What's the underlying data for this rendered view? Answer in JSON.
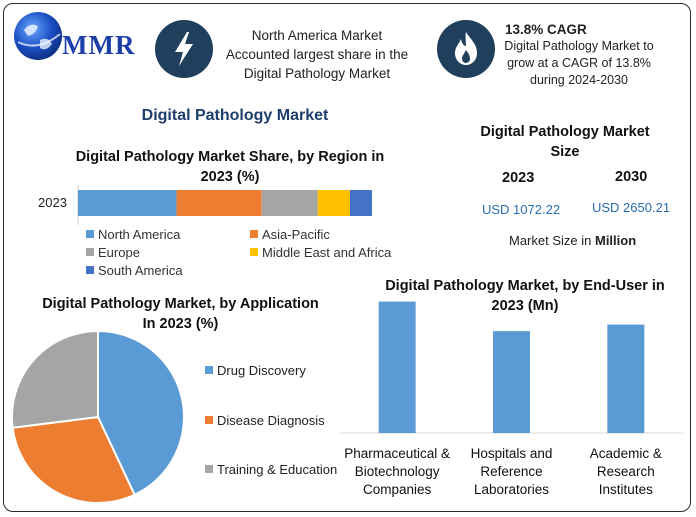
{
  "brand": {
    "logo_text": "MMR"
  },
  "header": {
    "item1": {
      "text_lines": [
        "North America Market",
        "Accounted largest share in the",
        "Digital Pathology Market"
      ],
      "icon": "lightning-icon"
    },
    "item2": {
      "title": "13.8% CAGR",
      "text_lines": [
        "Digital Pathology Market to",
        "grow at a CAGR of 13.8%",
        "during 2024-2030"
      ],
      "icon": "flame-icon"
    }
  },
  "main_title": "Digital Pathology Market",
  "market_size": {
    "title_lines": [
      "Digital Pathology Market",
      "Size"
    ],
    "year1": "2023",
    "year2": "2030",
    "value1": "USD 1072.22",
    "value2": "USD 2650.21",
    "note_prefix": "Market Size in ",
    "note_unit": "Million"
  },
  "colors": {
    "north_america": "#5b9bd5",
    "asia_pacific": "#ed7d31",
    "europe": "#a5a5a5",
    "mea": "#ffc000",
    "south_america": "#4472c4",
    "bar": "#5b9bd5"
  },
  "chart_data": [
    {
      "type": "bar",
      "orientation": "horizontal-stacked",
      "title": "Digital Pathology Market Share, by Region in 2023 (%)",
      "categories": [
        "2023"
      ],
      "series": [
        {
          "name": "North America",
          "values": [
            33.5
          ]
        },
        {
          "name": "Asia-Pacific",
          "values": [
            29
          ]
        },
        {
          "name": "Europe",
          "values": [
            19
          ]
        },
        {
          "name": "Middle East and Africa",
          "values": [
            11
          ]
        },
        {
          "name": "South America",
          "values": [
            7.5
          ]
        }
      ],
      "legend": "bottom"
    },
    {
      "type": "pie",
      "title": "Digital Pathology Market, by Application In 2023 (%)",
      "labels": [
        "Drug Discovery",
        "Disease Diagnosis",
        "Training & Education"
      ],
      "values": [
        43,
        30,
        27
      ],
      "legend": "right"
    },
    {
      "type": "bar",
      "title": "Digital Pathology Market, by End-User in 2023 (Mn)",
      "categories": [
        "Pharmaceutical & Biotechnology Companies",
        "Hospitals and Reference Laboratories",
        "Academic & Research Institutes"
      ],
      "category_lines": [
        [
          "Pharmaceutical &",
          "Biotechnology",
          "Companies"
        ],
        [
          "Hospitals and",
          "Reference",
          "Laboratories"
        ],
        [
          "Academic &",
          "Research",
          "Institutes"
        ]
      ],
      "values": [
        400,
        310,
        330
      ],
      "ylim": [
        0,
        420
      ],
      "grid": false
    }
  ]
}
